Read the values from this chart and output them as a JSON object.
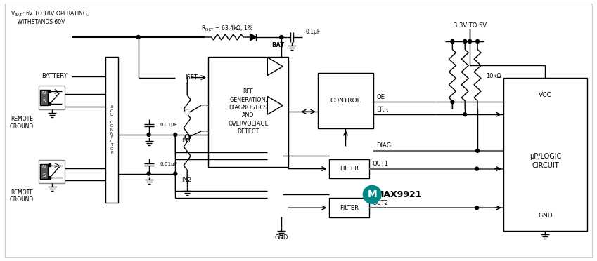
{
  "bg_color": "#ffffff",
  "ic_bg_color": "#cceef0",
  "ic_border_color": "#00aaaa",
  "vbat_line1": "VBAT: 6V TO 18V OPERATING,",
  "vbat_line2": "WITHSTANDS 60V",
  "riset_text": "Rᴵₛᴸₜ = 63.4kΩ, 1%",
  "cap_bat_text": "0.1μF",
  "bat_label": "BAT",
  "iset_label": "ISET",
  "battery_label": "BATTERY",
  "remote_ground_label": "REMOTE\nGROUND",
  "ecu_label": "E\nC\nU\n \nC\nO\nN\nN\nE\nC\nT\nO\nR",
  "ref_box_text": "REF\nGENERATION,\nDIAGNOSTICS\nAND\nOVERVOLTAGE\nDETECT",
  "control_box_text": "CONTROL",
  "filter_text": "FILTER",
  "max9921_text": "MAX9921",
  "in1_label": "IN1",
  "in2_label": "IN2",
  "gnd_label": "GND",
  "oe_label": "OE",
  "err_label": "ERR",
  "diag_label": "DIAG",
  "out1_label": "OUT1",
  "out2_label": "OUT2",
  "vcc_label": "VCC",
  "vcc_range_text": "3.3V TO 5V",
  "r_10k_text": "10kΩ",
  "up_logic_text": "μP/LOGIC\nCIRCUIT",
  "gnd_box_label": "GND",
  "cap_label_01": "0.01μF",
  "cap_label_02": "0.01μF",
  "n_label": "N",
  "s_label": "S"
}
